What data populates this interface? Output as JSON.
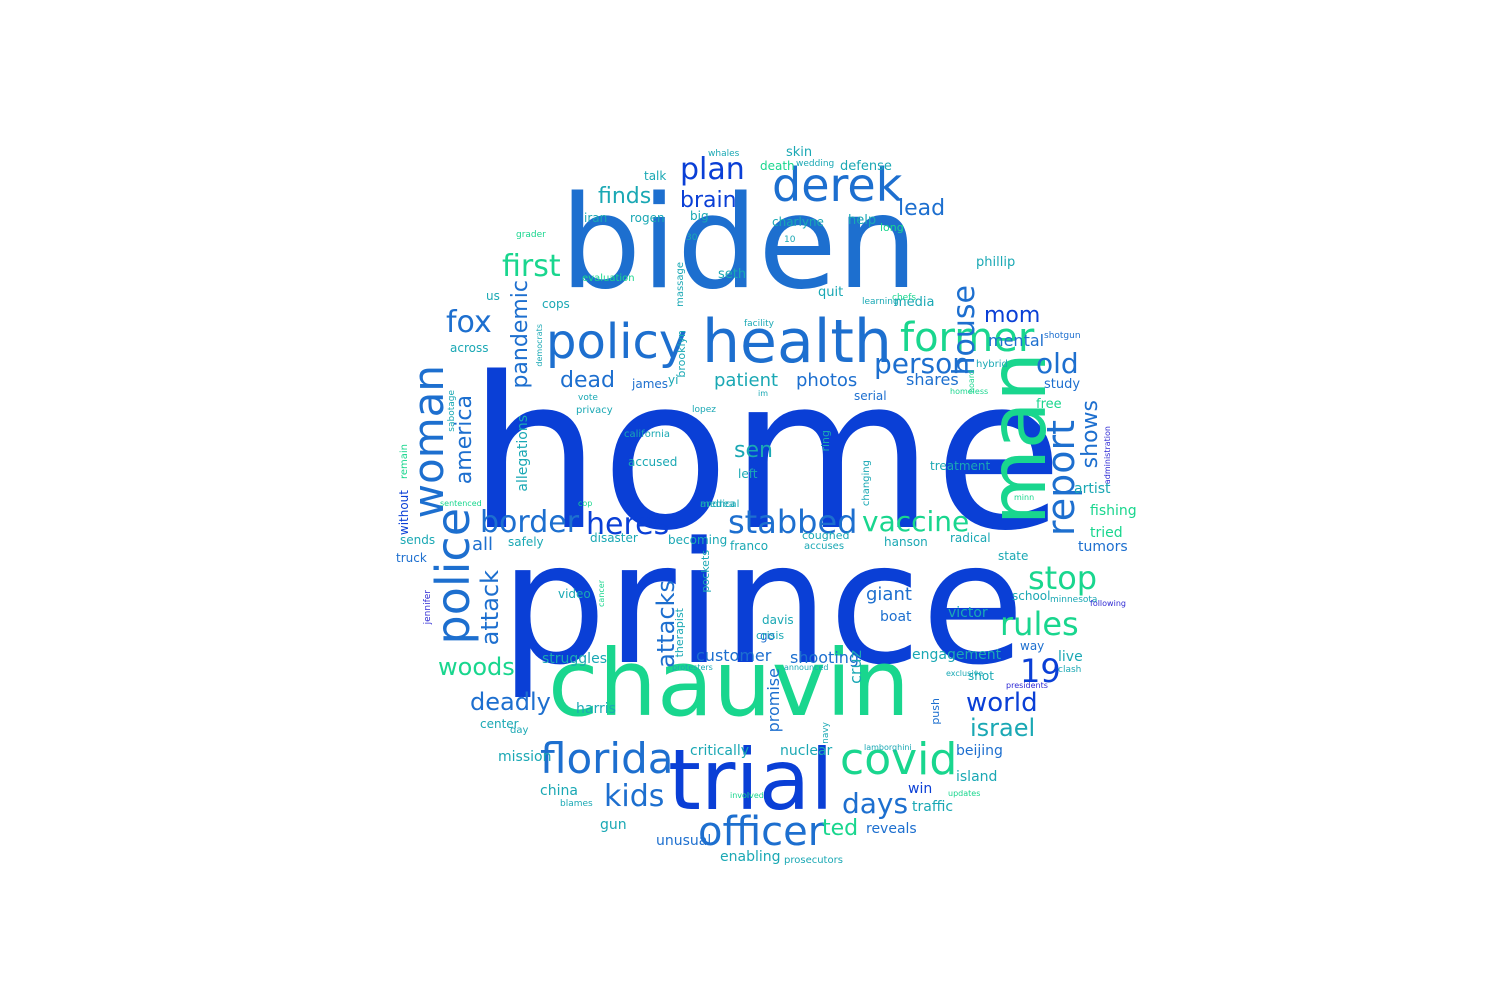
{
  "palette": {
    "blue": "#0a3fd6",
    "mid_blue": "#1d6fcf",
    "teal": "#1aa8b4",
    "green": "#19d68e",
    "indigo": "#2e2ad4"
  },
  "words": [
    {
      "text": "home",
      "weight": 1.0,
      "color": "#0a3fd6"
    },
    {
      "text": "prince",
      "weight": 0.98,
      "color": "#0a3fd6"
    },
    {
      "text": "biden",
      "weight": 0.8,
      "color": "#1d6fcf"
    },
    {
      "text": "chauvin",
      "weight": 0.62,
      "color": "#19d68e"
    },
    {
      "text": "trial",
      "weight": 0.55,
      "color": "#0a3fd6"
    },
    {
      "text": "man",
      "weight": 0.55,
      "color": "#19d68e"
    },
    {
      "text": "health",
      "weight": 0.45,
      "color": "#1d6fcf"
    },
    {
      "text": "derek",
      "weight": 0.36,
      "color": "#1d6fcf"
    },
    {
      "text": "policy",
      "weight": 0.36,
      "color": "#1d6fcf"
    },
    {
      "text": "police",
      "weight": 0.33,
      "color": "#1d6fcf"
    },
    {
      "text": "woman",
      "weight": 0.33,
      "color": "#1d6fcf"
    },
    {
      "text": "covid",
      "weight": 0.33,
      "color": "#19d68e"
    },
    {
      "text": "florida",
      "weight": 0.3,
      "color": "#1d6fcf"
    },
    {
      "text": "officer",
      "weight": 0.3,
      "color": "#1d6fcf"
    },
    {
      "text": "former",
      "weight": 0.3,
      "color": "#19d68e"
    },
    {
      "text": "report",
      "weight": 0.3,
      "color": "#1d6fcf"
    },
    {
      "text": "border",
      "weight": 0.25,
      "color": "#1d6fcf"
    },
    {
      "text": "heres",
      "weight": 0.25,
      "color": "#0a3fd6"
    },
    {
      "text": "stabbed",
      "weight": 0.25,
      "color": "#1d6fcf"
    },
    {
      "text": "vaccine",
      "weight": 0.25,
      "color": "#19d68e"
    },
    {
      "text": "house",
      "weight": 0.25,
      "color": "#1d6fcf"
    },
    {
      "text": "stop",
      "weight": 0.25,
      "color": "#19d68e"
    },
    {
      "text": "rules",
      "weight": 0.25,
      "color": "#19d68e"
    },
    {
      "text": "kids",
      "weight": 0.25,
      "color": "#1d6fcf"
    },
    {
      "text": "plan",
      "weight": 0.24,
      "color": "#0a3fd6"
    },
    {
      "text": "19",
      "weight": 0.24,
      "color": "#0a3fd6"
    },
    {
      "text": "fox",
      "weight": 0.23,
      "color": "#1d6fcf"
    },
    {
      "text": "first",
      "weight": 0.23,
      "color": "#19d68e"
    },
    {
      "text": "old",
      "weight": 0.23,
      "color": "#1d6fcf"
    },
    {
      "text": "person",
      "weight": 0.22,
      "color": "#1d6fcf"
    },
    {
      "text": "world",
      "weight": 0.22,
      "color": "#0a3fd6"
    },
    {
      "text": "israel",
      "weight": 0.22,
      "color": "#1aa8b4"
    },
    {
      "text": "days",
      "weight": 0.22,
      "color": "#1d6fcf"
    },
    {
      "text": "woods",
      "weight": 0.2,
      "color": "#19d68e"
    },
    {
      "text": "deadly",
      "weight": 0.2,
      "color": "#1d6fcf"
    },
    {
      "text": "attack",
      "weight": 0.2,
      "color": "#1d6fcf"
    },
    {
      "text": "attacks",
      "weight": 0.2,
      "color": "#1d6fcf"
    },
    {
      "text": "pandemic",
      "weight": 0.2,
      "color": "#1d6fcf"
    },
    {
      "text": "america",
      "weight": 0.2,
      "color": "#1d6fcf"
    },
    {
      "text": "dead",
      "weight": 0.18,
      "color": "#1d6fcf"
    },
    {
      "text": "mom",
      "weight": 0.18,
      "color": "#0a3fd6"
    },
    {
      "text": "finds",
      "weight": 0.18,
      "color": "#1aa8b4"
    },
    {
      "text": "brain",
      "weight": 0.18,
      "color": "#0a3fd6"
    },
    {
      "text": "lead",
      "weight": 0.18,
      "color": "#1d6fcf"
    },
    {
      "text": "shows",
      "weight": 0.18,
      "color": "#1d6fcf"
    },
    {
      "text": "ted",
      "weight": 0.18,
      "color": "#19d68e"
    },
    {
      "text": "sen",
      "weight": 0.17,
      "color": "#1aa8b4"
    },
    {
      "text": "photos",
      "weight": 0.15,
      "color": "#1d6fcf"
    },
    {
      "text": "patient",
      "weight": 0.15,
      "color": "#1aa8b4"
    },
    {
      "text": "all",
      "weight": 0.15,
      "color": "#1d6fcf"
    },
    {
      "text": "mental",
      "weight": 0.14,
      "color": "#1d6fcf"
    },
    {
      "text": "shares",
      "weight": 0.14,
      "color": "#1d6fcf"
    },
    {
      "text": "customer",
      "weight": 0.14,
      "color": "#1d6fcf"
    },
    {
      "text": "giant",
      "weight": 0.14,
      "color": "#1d6fcf"
    },
    {
      "text": "shooting",
      "weight": 0.13,
      "color": "#1d6fcf"
    },
    {
      "text": "cruz",
      "weight": 0.13,
      "color": "#1aa8b4"
    },
    {
      "text": "engagement",
      "weight": 0.12,
      "color": "#1aa8b4"
    },
    {
      "text": "boat",
      "weight": 0.12,
      "color": "#1d6fcf"
    },
    {
      "text": "victor",
      "weight": 0.12,
      "color": "#1aa8b4"
    },
    {
      "text": "promise",
      "weight": 0.12,
      "color": "#1d6fcf"
    },
    {
      "text": "struggles",
      "weight": 0.12,
      "color": "#1aa8b4"
    },
    {
      "text": "allegations",
      "weight": 0.12,
      "color": "#1aa8b4"
    },
    {
      "text": "harris",
      "weight": 0.11,
      "color": "#1aa8b4"
    },
    {
      "text": "beijing",
      "weight": 0.11,
      "color": "#1d6fcf"
    },
    {
      "text": "island",
      "weight": 0.11,
      "color": "#1aa8b4"
    },
    {
      "text": "win",
      "weight": 0.11,
      "color": "#0a3fd6"
    },
    {
      "text": "traffic",
      "weight": 0.11,
      "color": "#1aa8b4"
    },
    {
      "text": "reveals",
      "weight": 0.11,
      "color": "#1d6fcf"
    },
    {
      "text": "unusual",
      "weight": 0.11,
      "color": "#1d6fcf"
    },
    {
      "text": "gun",
      "weight": 0.11,
      "color": "#1aa8b4"
    },
    {
      "text": "enabling",
      "weight": 0.11,
      "color": "#1aa8b4"
    },
    {
      "text": "critically",
      "weight": 0.11,
      "color": "#1aa8b4"
    },
    {
      "text": "nuclear",
      "weight": 0.11,
      "color": "#1aa8b4"
    },
    {
      "text": "china",
      "weight": 0.11,
      "color": "#1aa8b4"
    },
    {
      "text": "mission",
      "weight": 0.11,
      "color": "#1aa8b4"
    },
    {
      "text": "artist",
      "weight": 0.1,
      "color": "#1aa8b4"
    },
    {
      "text": "tumors",
      "weight": 0.1,
      "color": "#1d6fcf"
    },
    {
      "text": "fishing",
      "weight": 0.1,
      "color": "#19d68e"
    },
    {
      "text": "tried",
      "weight": 0.1,
      "color": "#19d68e"
    },
    {
      "text": "live",
      "weight": 0.1,
      "color": "#1aa8b4"
    },
    {
      "text": "free",
      "weight": 0.1,
      "color": "#19d68e"
    },
    {
      "text": "study",
      "weight": 0.1,
      "color": "#1d6fcf"
    },
    {
      "text": "phillip",
      "weight": 0.1,
      "color": "#1aa8b4"
    },
    {
      "text": "media",
      "weight": 0.1,
      "color": "#1aa8b4"
    },
    {
      "text": "quit",
      "weight": 0.1,
      "color": "#1aa8b4"
    },
    {
      "text": "seth",
      "weight": 0.1,
      "color": "#1aa8b4"
    },
    {
      "text": "help",
      "weight": 0.1,
      "color": "#1aa8b4"
    },
    {
      "text": "long",
      "weight": 0.1,
      "color": "#19d68e"
    },
    {
      "text": "defense",
      "weight": 0.09,
      "color": "#1aa8b4"
    },
    {
      "text": "skin",
      "weight": 0.1,
      "color": "#1aa8b4"
    },
    {
      "text": "death",
      "weight": 0.1,
      "color": "#19d68e"
    },
    {
      "text": "talk",
      "weight": 0.1,
      "color": "#1aa8b4"
    },
    {
      "text": "iran",
      "weight": 0.1,
      "color": "#1aa8b4"
    },
    {
      "text": "rogen",
      "weight": 0.1,
      "color": "#1aa8b4"
    },
    {
      "text": "big",
      "weight": 0.1,
      "color": "#1aa8b4"
    },
    {
      "text": "charlyne",
      "weight": 0.1,
      "color": "#1aa8b4"
    },
    {
      "text": "across",
      "weight": 0.1,
      "color": "#1aa8b4"
    },
    {
      "text": "cops",
      "weight": 0.1,
      "color": "#1aa8b4"
    },
    {
      "text": "us",
      "weight": 0.1,
      "color": "#1aa8b4"
    },
    {
      "text": "yi",
      "weight": 0.1,
      "color": "#1aa8b4"
    },
    {
      "text": "james",
      "weight": 0.1,
      "color": "#1d6fcf"
    },
    {
      "text": "serial",
      "weight": 0.1,
      "color": "#1d6fcf"
    },
    {
      "text": "accused",
      "weight": 0.1,
      "color": "#1aa8b4"
    },
    {
      "text": "left",
      "weight": 0.1,
      "color": "#1aa8b4"
    },
    {
      "text": "safely",
      "weight": 0.1,
      "color": "#1aa8b4"
    },
    {
      "text": "disaster",
      "weight": 0.1,
      "color": "#1aa8b4"
    },
    {
      "text": "becoming",
      "weight": 0.1,
      "color": "#1aa8b4"
    },
    {
      "text": "franco",
      "weight": 0.1,
      "color": "#1aa8b4"
    },
    {
      "text": "hanson",
      "weight": 0.1,
      "color": "#1aa8b4"
    },
    {
      "text": "radical",
      "weight": 0.1,
      "color": "#1aa8b4"
    },
    {
      "text": "state",
      "weight": 0.1,
      "color": "#1aa8b4"
    },
    {
      "text": "sends",
      "weight": 0.1,
      "color": "#1aa8b4"
    },
    {
      "text": "truck",
      "weight": 0.1,
      "color": "#1d6fcf"
    },
    {
      "text": "video",
      "weight": 0.1,
      "color": "#1aa8b4"
    },
    {
      "text": "go",
      "weight": 0.1,
      "color": "#1d6fcf"
    },
    {
      "text": "davis",
      "weight": 0.1,
      "color": "#1aa8b4"
    },
    {
      "text": "crisis",
      "weight": 0.1,
      "color": "#1aa8b4"
    },
    {
      "text": "school",
      "weight": 0.09,
      "color": "#1aa8b4"
    },
    {
      "text": "way",
      "weight": 0.1,
      "color": "#1d6fcf"
    },
    {
      "text": "shot",
      "weight": 0.1,
      "color": "#1aa8b4"
    },
    {
      "text": "push",
      "weight": 0.1,
      "color": "#1d6fcf"
    },
    {
      "text": "center",
      "weight": 0.09,
      "color": "#1aa8b4"
    },
    {
      "text": "day",
      "weight": 0.1,
      "color": "#1aa8b4"
    },
    {
      "text": "without",
      "weight": 0.08,
      "color": "#0a3fd6"
    },
    {
      "text": "remain",
      "weight": 0.1,
      "color": "#19d68e"
    },
    {
      "text": "sabotage",
      "weight": 0.08,
      "color": "#1aa8b4"
    },
    {
      "text": "brooklyn",
      "weight": 0.08,
      "color": "#1aa8b4"
    },
    {
      "text": "massage",
      "weight": 0.09,
      "color": "#1aa8b4"
    },
    {
      "text": "evaluation",
      "weight": 0.08,
      "color": "#19d68e"
    },
    {
      "text": "facility",
      "weight": 0.08,
      "color": "#1aa8b4"
    },
    {
      "text": "california",
      "weight": 0.08,
      "color": "#1aa8b4"
    },
    {
      "text": "privacy",
      "weight": 0.08,
      "color": "#1aa8b4"
    },
    {
      "text": "vote",
      "weight": 0.08,
      "color": "#1aa8b4"
    },
    {
      "text": "ring",
      "weight": 0.08,
      "color": "#1aa8b4"
    },
    {
      "text": "changing",
      "weight": 0.08,
      "color": "#1aa8b4"
    },
    {
      "text": "coughed",
      "weight": 0.08,
      "color": "#1aa8b4"
    },
    {
      "text": "accuses",
      "weight": 0.08,
      "color": "#1aa8b4"
    },
    {
      "text": "pockets",
      "weight": 0.08,
      "color": "#1aa8b4"
    },
    {
      "text": "therapist",
      "weight": 0.08,
      "color": "#1aa8b4"
    },
    {
      "text": "treatment",
      "weight": 0.08,
      "color": "#1aa8b4"
    },
    {
      "text": "chefs",
      "weight": 0.08,
      "color": "#19d68e"
    },
    {
      "text": "hybrid",
      "weight": 0.07,
      "color": "#1aa8b4"
    },
    {
      "text": "whales",
      "weight": 0.07,
      "color": "#1aa8b4"
    },
    {
      "text": "wedding",
      "weight": 0.07,
      "color": "#1aa8b4"
    },
    {
      "text": "grader",
      "weight": 0.07,
      "color": "#19d68e"
    },
    {
      "text": "shotgun",
      "weight": 0.07,
      "color": "#1d6fcf"
    },
    {
      "text": "blames",
      "weight": 0.07,
      "color": "#1aa8b4"
    },
    {
      "text": "jennifer",
      "weight": 0.07,
      "color": "#2e2ad4"
    },
    {
      "text": "minnesota",
      "weight": 0.07,
      "color": "#1aa8b4"
    },
    {
      "text": "clash",
      "weight": 0.07,
      "color": "#1aa8b4"
    },
    {
      "text": "navy",
      "weight": 0.07,
      "color": "#1aa8b4"
    },
    {
      "text": "lopez",
      "weight": 0.07,
      "color": "#1aa8b4"
    },
    {
      "text": "learning",
      "weight": 0.07,
      "color": "#1aa8b4"
    },
    {
      "text": "10",
      "weight": 0.07,
      "color": "#1aa8b4"
    },
    {
      "text": "30",
      "weight": 0.07,
      "color": "#1aa8b4"
    },
    {
      "text": "im",
      "weight": 0.07,
      "color": "#1aa8b4"
    },
    {
      "text": "cop",
      "weight": 0.07,
      "color": "#19d68e"
    },
    {
      "text": "cancer",
      "weight": 0.06,
      "color": "#19d68e"
    },
    {
      "text": "sentenced",
      "weight": 0.06,
      "color": "#19d68e"
    },
    {
      "text": "involved",
      "weight": 0.06,
      "color": "#19d68e"
    },
    {
      "text": "board",
      "weight": 0.06,
      "color": "#19d68e"
    },
    {
      "text": "minn",
      "weight": 0.06,
      "color": "#19d68e"
    },
    {
      "text": "updates",
      "weight": 0.06,
      "color": "#19d68e"
    },
    {
      "text": "homeless",
      "weight": 0.06,
      "color": "#19d68e"
    },
    {
      "text": "exclusive",
      "weight": 0.06,
      "color": "#1aa8b4"
    },
    {
      "text": "democrats",
      "weight": 0.06,
      "color": "#1aa8b4"
    },
    {
      "text": "administration",
      "weight": 0.06,
      "color": "#2e2ad4"
    },
    {
      "text": "lamborghini",
      "weight": 0.06,
      "color": "#1aa8b4"
    },
    {
      "text": "protesters",
      "weight": 0.06,
      "color": "#1aa8b4"
    },
    {
      "text": "announced",
      "weight": 0.06,
      "color": "#1aa8b4"
    },
    {
      "text": "presidents",
      "weight": 0.06,
      "color": "#2e2ad4"
    },
    {
      "text": "following",
      "weight": 0.06,
      "color": "#2e2ad4"
    },
    {
      "text": "prosecutors",
      "weight": 0.06,
      "color": "#1aa8b4"
    },
    {
      "text": "medical",
      "weight": 0.06,
      "color": "#1aa8b4"
    },
    {
      "text": "andrea",
      "weight": 0.07,
      "color": "#1aa8b4"
    }
  ]
}
